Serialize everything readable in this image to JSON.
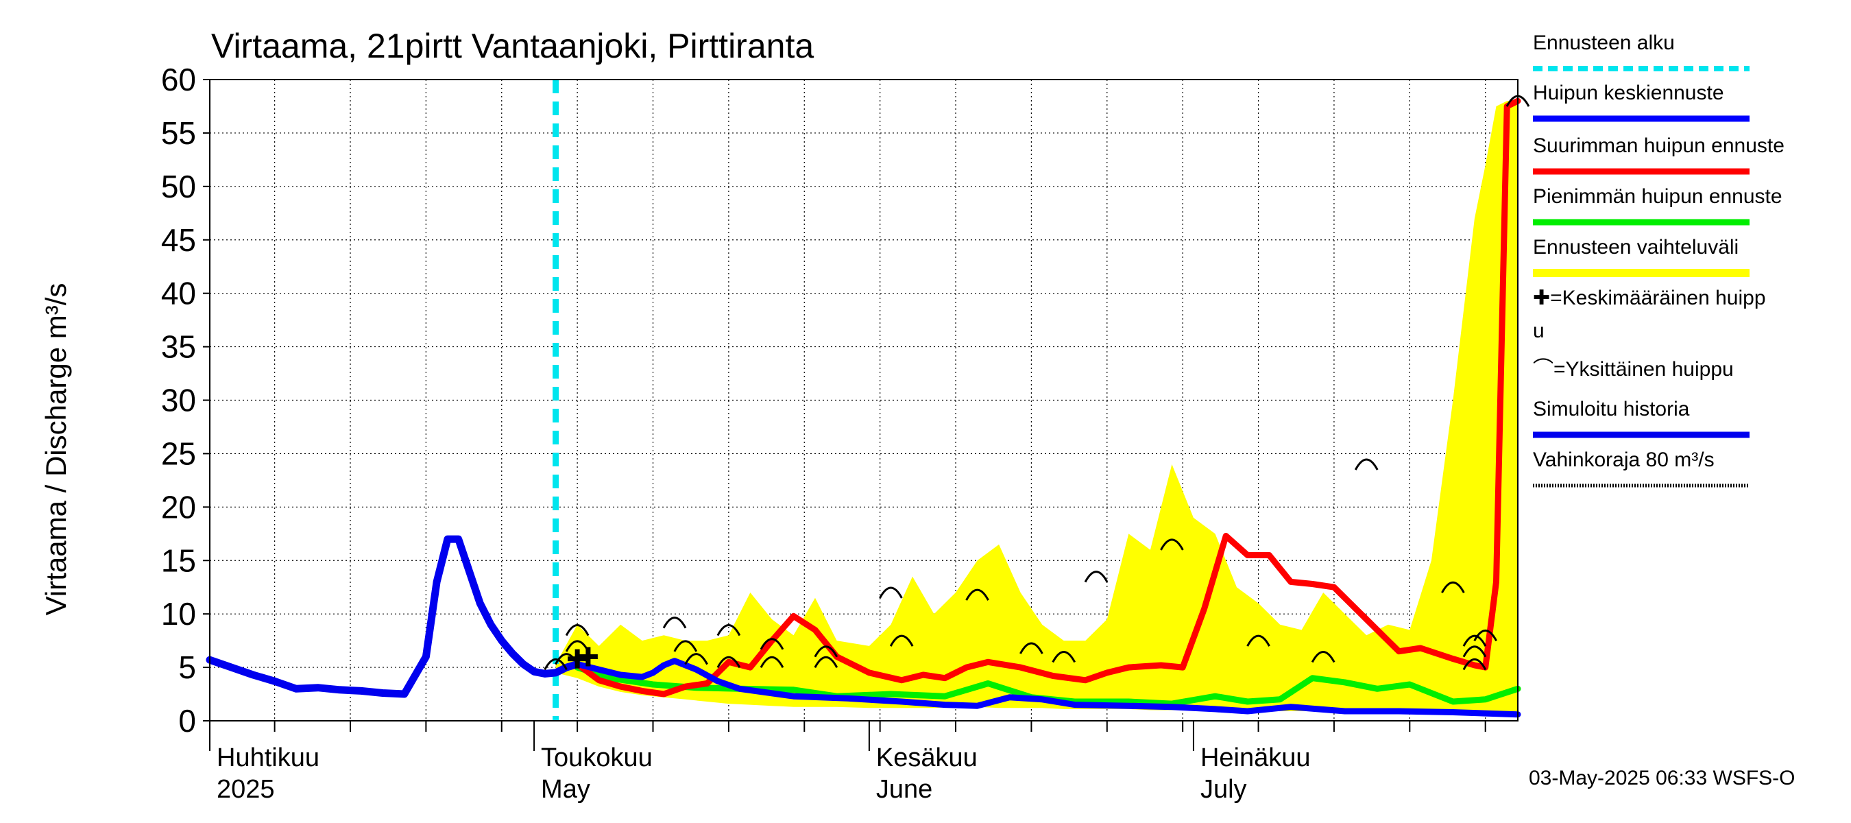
{
  "chart_data": {
    "type": "area",
    "title": "Virtaama, 21pirtt Vantaanjoki, Pirttiranta",
    "ylabel": "Virtaama / Discharge    m³/s",
    "ylim": [
      0,
      60
    ],
    "yticks": [
      0,
      5,
      10,
      15,
      20,
      25,
      30,
      35,
      40,
      45,
      50,
      55,
      60
    ],
    "xlim": [
      "2025-04-01",
      "2025-07-31"
    ],
    "month_labels": [
      {
        "date": "2025-04-01",
        "fi": "Huhtikuu",
        "en": "2025"
      },
      {
        "date": "2025-05-01",
        "fi": "Toukokuu",
        "en": "May"
      },
      {
        "date": "2025-06-01",
        "fi": "Kesäkuu",
        "en": "June"
      },
      {
        "date": "2025-07-01",
        "fi": "Heinäkuu",
        "en": "July"
      }
    ],
    "forecast_start": "2025-05-03",
    "footer": "03-May-2025 06:33 WSFS-O",
    "colors": {
      "forecast_start": "#00e5ee",
      "mean_peak": "#0000ff",
      "max_peak": "#ff0000",
      "min_peak": "#00ee00",
      "range": "#ffff00",
      "history": "#0000ee",
      "damage": "#000000"
    },
    "legend": [
      {
        "key": "forecast_start",
        "label": "Ennusteen alku",
        "style": "dashed-cyan"
      },
      {
        "key": "mean_peak",
        "label": "Huipun keskiennuste",
        "style": "line-blue"
      },
      {
        "key": "max_peak",
        "label": "Suurimman huipun ennuste",
        "style": "line-red"
      },
      {
        "key": "min_peak",
        "label": "Pienimmän huipun ennuste",
        "style": "line-green"
      },
      {
        "key": "range",
        "label": "Ennusteen vaihteluväli",
        "style": "band-yellow"
      },
      {
        "key": "mean_marker",
        "label": "✚=Keskimääräinen huipp u",
        "style": "text"
      },
      {
        "key": "single_marker",
        "label": "⌒=Yksittäinen huippu",
        "style": "text"
      },
      {
        "key": "history",
        "label": "Simuloitu historia",
        "style": "line-blue"
      },
      {
        "key": "damage",
        "label": "Vahinkoraja 80 m³/s",
        "style": "dotted-black"
      }
    ],
    "series": [
      {
        "name": "Simuloitu historia",
        "key": "history",
        "x": [
          "2025-04-01",
          "2025-04-03",
          "2025-04-05",
          "2025-04-07",
          "2025-04-09",
          "2025-04-11",
          "2025-04-13",
          "2025-04-15",
          "2025-04-17",
          "2025-04-19",
          "2025-04-21",
          "2025-04-22",
          "2025-04-23",
          "2025-04-24",
          "2025-04-25",
          "2025-04-26",
          "2025-04-27",
          "2025-04-28",
          "2025-04-29",
          "2025-04-30",
          "2025-05-01",
          "2025-05-02",
          "2025-05-03",
          "2025-05-04",
          "2025-05-05"
        ],
        "y": [
          5.7,
          5.0,
          4.3,
          3.7,
          3.0,
          3.1,
          2.9,
          2.8,
          2.6,
          2.5,
          6.0,
          13.0,
          17.0,
          17.0,
          14.0,
          11.0,
          9.0,
          7.5,
          6.3,
          5.3,
          4.6,
          4.4,
          4.5,
          5.0,
          5.3
        ]
      },
      {
        "name": "Huipun keskiennuste",
        "key": "mean_peak",
        "x": [
          "2025-05-05",
          "2025-05-07",
          "2025-05-09",
          "2025-05-11",
          "2025-05-12",
          "2025-05-13",
          "2025-05-14",
          "2025-05-16",
          "2025-05-18",
          "2025-05-20",
          "2025-05-25",
          "2025-05-30",
          "2025-06-04",
          "2025-06-08",
          "2025-06-11",
          "2025-06-14",
          "2025-06-17",
          "2025-06-20",
          "2025-06-25",
          "2025-06-29",
          "2025-07-03",
          "2025-07-06",
          "2025-07-10",
          "2025-07-15",
          "2025-07-20",
          "2025-07-25",
          "2025-07-31"
        ],
        "y": [
          5.3,
          4.8,
          4.3,
          4.1,
          4.5,
          5.2,
          5.6,
          4.8,
          3.7,
          3.0,
          2.3,
          2.1,
          1.8,
          1.5,
          1.4,
          2.2,
          2.0,
          1.5,
          1.4,
          1.3,
          1.1,
          0.9,
          1.3,
          0.9,
          0.9,
          0.8,
          0.6
        ]
      },
      {
        "name": "Suurimman huipun ennuste",
        "key": "max_peak",
        "x": [
          "2025-05-05",
          "2025-05-07",
          "2025-05-09",
          "2025-05-11",
          "2025-05-13",
          "2025-05-15",
          "2025-05-17",
          "2025-05-19",
          "2025-05-21",
          "2025-05-23",
          "2025-05-25",
          "2025-05-27",
          "2025-05-29",
          "2025-06-01",
          "2025-06-04",
          "2025-06-06",
          "2025-06-08",
          "2025-06-10",
          "2025-06-12",
          "2025-06-15",
          "2025-06-18",
          "2025-06-21",
          "2025-06-23",
          "2025-06-25",
          "2025-06-28",
          "2025-06-30",
          "2025-07-02",
          "2025-07-04",
          "2025-07-06",
          "2025-07-08",
          "2025-07-10",
          "2025-07-12",
          "2025-07-14",
          "2025-07-17",
          "2025-07-20",
          "2025-07-22",
          "2025-07-25",
          "2025-07-27",
          "2025-07-28",
          "2025-07-29",
          "2025-07-30",
          "2025-07-31"
        ],
        "y": [
          5.3,
          3.8,
          3.2,
          2.8,
          2.5,
          3.2,
          3.5,
          5.5,
          5.0,
          7.5,
          9.8,
          8.5,
          6.0,
          4.5,
          3.8,
          4.3,
          4.0,
          5.0,
          5.5,
          5.0,
          4.2,
          3.8,
          4.5,
          5.0,
          5.2,
          5.0,
          10.5,
          17.3,
          15.5,
          15.5,
          13.0,
          12.8,
          12.5,
          9.5,
          6.5,
          6.8,
          5.8,
          5.2,
          5.0,
          13.0,
          57.5,
          58.0
        ]
      },
      {
        "name": "Pienimmän huipun ennuste",
        "key": "min_peak",
        "x": [
          "2025-05-05",
          "2025-05-08",
          "2025-05-12",
          "2025-05-16",
          "2025-05-20",
          "2025-05-25",
          "2025-05-29",
          "2025-06-03",
          "2025-06-08",
          "2025-06-12",
          "2025-06-16",
          "2025-06-20",
          "2025-06-25",
          "2025-06-29",
          "2025-07-03",
          "2025-07-06",
          "2025-07-09",
          "2025-07-12",
          "2025-07-15",
          "2025-07-18",
          "2025-07-21",
          "2025-07-25",
          "2025-07-28",
          "2025-07-31"
        ],
        "y": [
          5.0,
          4.0,
          3.4,
          3.1,
          3.0,
          2.9,
          2.3,
          2.5,
          2.3,
          3.5,
          2.2,
          1.8,
          1.8,
          1.6,
          2.3,
          1.8,
          2.0,
          4.0,
          3.6,
          3.0,
          3.4,
          1.8,
          2.0,
          3.0
        ]
      },
      {
        "name": "Ennusteen vaihteluväli",
        "key": "range",
        "x": [
          "2025-05-03",
          "2025-05-05",
          "2025-05-07",
          "2025-05-09",
          "2025-05-11",
          "2025-05-13",
          "2025-05-15",
          "2025-05-17",
          "2025-05-19",
          "2025-05-21",
          "2025-05-23",
          "2025-05-25",
          "2025-05-27",
          "2025-05-29",
          "2025-06-01",
          "2025-06-03",
          "2025-06-05",
          "2025-06-07",
          "2025-06-09",
          "2025-06-11",
          "2025-06-13",
          "2025-06-15",
          "2025-06-17",
          "2025-06-19",
          "2025-06-21",
          "2025-06-23",
          "2025-06-25",
          "2025-06-27",
          "2025-06-29",
          "2025-07-01",
          "2025-07-03",
          "2025-07-05",
          "2025-07-07",
          "2025-07-09",
          "2025-07-11",
          "2025-07-13",
          "2025-07-15",
          "2025-07-17",
          "2025-07-19",
          "2025-07-21",
          "2025-07-23",
          "2025-07-25",
          "2025-07-27",
          "2025-07-28",
          "2025-07-29",
          "2025-07-30",
          "2025-07-31"
        ],
        "lower": [
          4.5,
          4.0,
          3.2,
          2.7,
          2.4,
          2.2,
          2.0,
          1.8,
          1.6,
          1.5,
          1.4,
          1.3,
          1.3,
          1.3,
          1.2,
          1.2,
          1.2,
          1.2,
          1.3,
          1.3,
          1.2,
          1.2,
          1.2,
          1.1,
          1.1,
          1.1,
          1.1,
          1.0,
          1.0,
          1.0,
          1.0,
          1.0,
          1.0,
          0.9,
          0.9,
          0.9,
          0.9,
          0.9,
          0.8,
          0.8,
          0.8,
          0.8,
          0.8,
          0.8,
          0.8,
          0.8,
          0.8
        ],
        "upper": [
          5.3,
          9.0,
          7.0,
          9.0,
          7.5,
          8.0,
          7.5,
          7.5,
          8.0,
          12.0,
          9.5,
          8.0,
          11.5,
          7.5,
          7.0,
          9.0,
          13.5,
          10.0,
          12.0,
          15.0,
          16.5,
          12.0,
          9.0,
          7.5,
          7.5,
          9.5,
          17.5,
          16.0,
          24.0,
          19.0,
          17.5,
          12.5,
          11.0,
          9.0,
          8.5,
          12.0,
          10.0,
          8.0,
          9.0,
          8.5,
          15.0,
          30.0,
          47.0,
          52.0,
          57.5,
          58.0,
          58.0
        ]
      }
    ],
    "single_peaks": [
      {
        "x": "2025-05-05",
        "y": 8.5
      },
      {
        "x": "2025-05-05",
        "y": 7.0
      },
      {
        "x": "2025-05-14",
        "y": 9.2
      },
      {
        "x": "2025-05-15",
        "y": 7.0
      },
      {
        "x": "2025-05-16",
        "y": 5.8
      },
      {
        "x": "2025-05-19",
        "y": 8.5
      },
      {
        "x": "2025-05-19",
        "y": 5.5
      },
      {
        "x": "2025-05-23",
        "y": 7.2
      },
      {
        "x": "2025-05-23",
        "y": 5.5
      },
      {
        "x": "2025-05-28",
        "y": 6.5
      },
      {
        "x": "2025-05-28",
        "y": 5.5
      },
      {
        "x": "2025-06-03",
        "y": 12.0
      },
      {
        "x": "2025-06-04",
        "y": 7.5
      },
      {
        "x": "2025-06-11",
        "y": 11.8
      },
      {
        "x": "2025-06-16",
        "y": 6.8
      },
      {
        "x": "2025-06-19",
        "y": 6.0
      },
      {
        "x": "2025-06-22",
        "y": 13.5
      },
      {
        "x": "2025-06-29",
        "y": 16.5
      },
      {
        "x": "2025-07-07",
        "y": 7.5
      },
      {
        "x": "2025-07-13",
        "y": 6.0
      },
      {
        "x": "2025-07-17",
        "y": 24.0
      },
      {
        "x": "2025-07-25",
        "y": 12.5
      },
      {
        "x": "2025-07-27",
        "y": 7.5
      },
      {
        "x": "2025-07-27",
        "y": 6.5
      },
      {
        "x": "2025-07-27",
        "y": 5.3
      },
      {
        "x": "2025-07-28",
        "y": 8.0
      },
      {
        "x": "2025-07-31",
        "y": 58.0
      },
      {
        "x": "2025-05-03",
        "y": 5.3
      },
      {
        "x": "2025-05-04",
        "y": 5.8
      }
    ],
    "mean_peak_markers": [
      {
        "x": "2025-05-05",
        "y": 5.8
      },
      {
        "x": "2025-05-06",
        "y": 6.0
      }
    ]
  }
}
